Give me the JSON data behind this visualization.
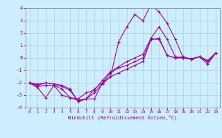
{
  "xlabel": "Windchill (Refroidissement éolien,°C)",
  "bg_color": "#cceeff",
  "grid_color": "#aacccc",
  "line_color": "#990099",
  "x": [
    0,
    1,
    2,
    3,
    4,
    5,
    6,
    7,
    8,
    9,
    10,
    11,
    12,
    13,
    14,
    15,
    16,
    17,
    18,
    19,
    20,
    21,
    22,
    23
  ],
  "series1": [
    -2.0,
    -2.2,
    -2.0,
    -2.1,
    -2.2,
    -2.5,
    -3.5,
    -3.3,
    -2.8,
    -2.1,
    -1.5,
    -1.2,
    -0.9,
    -0.6,
    -0.3,
    1.5,
    1.5,
    0.2,
    0.0,
    0.1,
    -0.1,
    0.1,
    -0.3,
    0.4
  ],
  "series2": [
    -2.0,
    -2.4,
    -3.2,
    -2.2,
    -3.0,
    -3.2,
    -3.4,
    -3.3,
    -3.3,
    -2.0,
    -1.5,
    1.3,
    2.5,
    3.5,
    3.0,
    4.3,
    3.7,
    2.8,
    1.5,
    0.0,
    -0.1,
    0.1,
    -0.5,
    0.4
  ],
  "series3": [
    -2.0,
    -2.1,
    -2.0,
    -2.1,
    -2.3,
    -2.6,
    -3.5,
    -3.3,
    -2.5,
    -2.0,
    -1.2,
    -0.8,
    -0.6,
    -0.3,
    0.0,
    1.5,
    1.6,
    0.2,
    0.0,
    0.0,
    -0.1,
    0.1,
    -0.3,
    0.4
  ],
  "series4": [
    -2.0,
    -2.3,
    -2.2,
    -2.2,
    -2.5,
    -3.2,
    -3.3,
    -2.8,
    -2.6,
    -1.8,
    -1.1,
    -0.7,
    -0.3,
    0.0,
    0.3,
    1.6,
    2.5,
    1.5,
    0.1,
    0.0,
    -0.05,
    0.1,
    -0.2,
    0.4
  ],
  "ylim": [
    -4,
    4
  ],
  "yticks": [
    -4,
    -3,
    -2,
    -1,
    0,
    1,
    2,
    3,
    4
  ],
  "xlim": [
    0,
    23
  ],
  "xticks": [
    0,
    1,
    2,
    3,
    4,
    5,
    6,
    7,
    8,
    9,
    10,
    11,
    12,
    13,
    14,
    15,
    16,
    17,
    18,
    19,
    20,
    21,
    22,
    23
  ]
}
